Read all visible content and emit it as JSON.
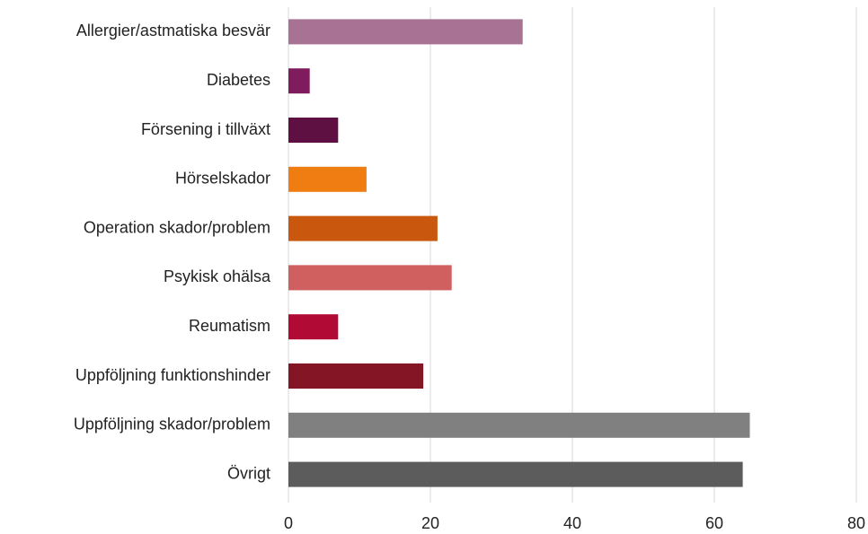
{
  "chart_data": {
    "type": "barh",
    "categories": [
      "Allergier/astmatiska besvär",
      "Diabetes",
      "Försening i tillväxt",
      "Hörselskador",
      "Operation skador/problem",
      "Psykisk ohälsa",
      "Reumatism",
      "Uppföljning funktionshinder",
      "Uppföljning skador/problem",
      "Övrigt"
    ],
    "values": [
      33,
      3,
      7,
      11,
      21,
      23,
      7,
      19,
      65,
      64
    ],
    "colors": [
      "#a87294",
      "#7f1c5e",
      "#5e1042",
      "#ef7d12",
      "#c9580e",
      "#d06060",
      "#b00a35",
      "#841525",
      "#808080",
      "#5c5c5c"
    ],
    "xlim": [
      0,
      80
    ],
    "xticks": [
      0,
      20,
      40,
      60,
      80
    ],
    "grid": true
  }
}
